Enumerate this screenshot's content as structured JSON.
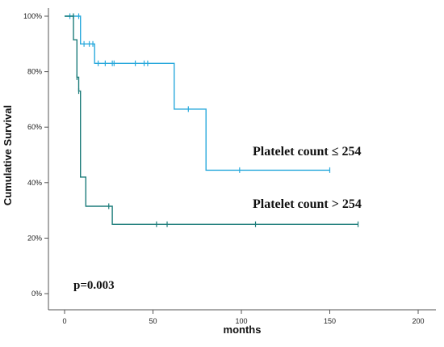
{
  "chart_data": {
    "type": "line",
    "subtype": "kaplan-meier step",
    "xlabel": "months",
    "ylabel": "Cumulative Survival",
    "xlim": [
      0,
      200
    ],
    "ylim": [
      0,
      100
    ],
    "x_ticks": [
      "0",
      "50",
      "100",
      "150",
      "200"
    ],
    "y_ticks": [
      "0%",
      "20%",
      "40%",
      "60%",
      "80%",
      "100%"
    ],
    "y_tick_values": [
      0,
      20,
      40,
      60,
      80,
      100
    ],
    "x_tick_values": [
      0,
      50,
      100,
      150,
      200
    ],
    "grid": false,
    "series": [
      {
        "name": "Platelet count ≤ 254",
        "color": "#29a9dc",
        "steps": [
          [
            0,
            100
          ],
          [
            9,
            100
          ],
          [
            9,
            90
          ],
          [
            17,
            90
          ],
          [
            17,
            83
          ],
          [
            62,
            83
          ],
          [
            62,
            66.5
          ],
          [
            80,
            66.5
          ],
          [
            80,
            44.5
          ],
          [
            150,
            44.5
          ]
        ],
        "censored": [
          [
            3,
            100
          ],
          [
            5,
            100
          ],
          [
            8,
            100
          ],
          [
            11,
            90
          ],
          [
            14,
            90
          ],
          [
            16,
            90
          ],
          [
            19,
            83
          ],
          [
            23,
            83
          ],
          [
            27,
            83
          ],
          [
            28,
            83
          ],
          [
            40,
            83
          ],
          [
            45,
            83
          ],
          [
            47,
            83
          ],
          [
            70,
            66.5
          ],
          [
            99,
            44.5
          ],
          [
            150,
            44.5
          ]
        ]
      },
      {
        "name": "Platelet count > 254",
        "color": "#1c7c7a",
        "steps": [
          [
            0,
            100
          ],
          [
            5,
            100
          ],
          [
            5,
            91.5
          ],
          [
            7,
            91.5
          ],
          [
            7,
            78
          ],
          [
            8,
            78
          ],
          [
            8,
            73
          ],
          [
            9,
            73
          ],
          [
            9,
            42
          ],
          [
            12,
            42
          ],
          [
            12,
            31.5
          ],
          [
            27,
            31.5
          ],
          [
            27,
            25
          ],
          [
            166,
            25
          ]
        ],
        "censored": [
          [
            5,
            100
          ],
          [
            7,
            78
          ],
          [
            8,
            73
          ],
          [
            25,
            31.5
          ],
          [
            52,
            25
          ],
          [
            58,
            25
          ],
          [
            108,
            25
          ],
          [
            166,
            25
          ]
        ]
      }
    ],
    "annotations": {
      "p_value": "p=0.003"
    }
  }
}
